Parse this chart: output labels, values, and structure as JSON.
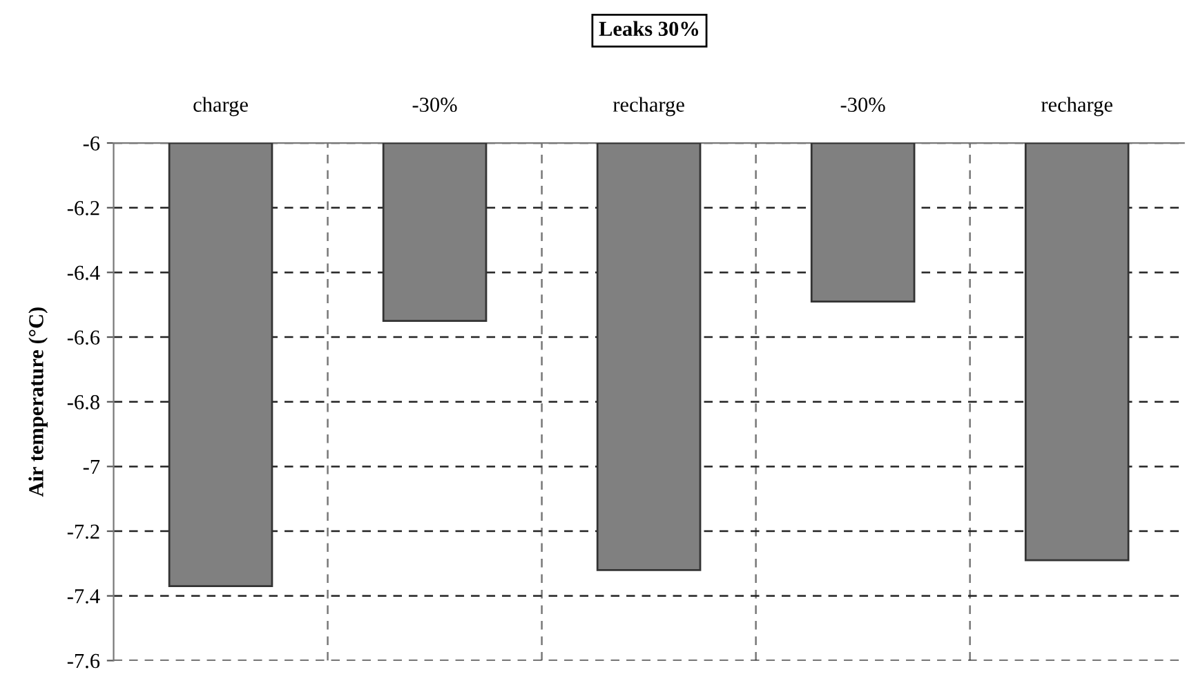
{
  "chart_data": {
    "type": "bar",
    "title": "Leaks 30%",
    "ylabel": "Air temperature (°C)",
    "categories": [
      "charge",
      "-30%",
      "recharge",
      "-30%",
      "recharge"
    ],
    "values": [
      -7.37,
      -6.55,
      -7.32,
      -6.49,
      -7.29
    ],
    "color": "#808080",
    "ylim": [
      -7.6,
      -6
    ],
    "yticks": [
      -7.6,
      -7.4,
      -7.2,
      -7,
      -6.8,
      -6.6,
      -6.4,
      -6.2,
      -6
    ],
    "grid": true
  }
}
